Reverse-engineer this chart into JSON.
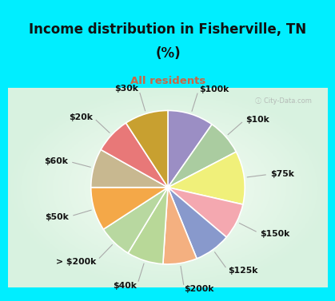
{
  "title_line1": "Income distribution in Fisherville, TN",
  "title_line2": "(%)",
  "subtitle": "All residents",
  "title_fontsize": 12,
  "subtitle_fontsize": 9.5,
  "title_color": "#111111",
  "subtitle_color": "#cc6644",
  "bg_cyan": "#00eeff",
  "bg_chart_color": "#d8efe8",
  "labels": [
    "$100k",
    "$10k",
    "$75k",
    "$150k",
    "$125k",
    "$200k",
    "$40k",
    "> $200k",
    "$50k",
    "$60k",
    "$20k",
    "$30k"
  ],
  "values": [
    9.5,
    7.5,
    11.0,
    7.5,
    7.5,
    7.0,
    7.5,
    7.0,
    9.0,
    8.0,
    7.5,
    9.0
  ],
  "colors": [
    "#9b8ec4",
    "#aacca0",
    "#f0f07a",
    "#f4a8b0",
    "#8899cc",
    "#f4b080",
    "#b8d898",
    "#b8d8a0",
    "#f4a848",
    "#c8b890",
    "#e87878",
    "#c8a030"
  ],
  "wedge_edge_color": "#ffffff",
  "wedge_linewidth": 1.2,
  "label_fontsize": 7.8,
  "label_color": "#111111",
  "watermark": "ⓘ City-Data.com"
}
